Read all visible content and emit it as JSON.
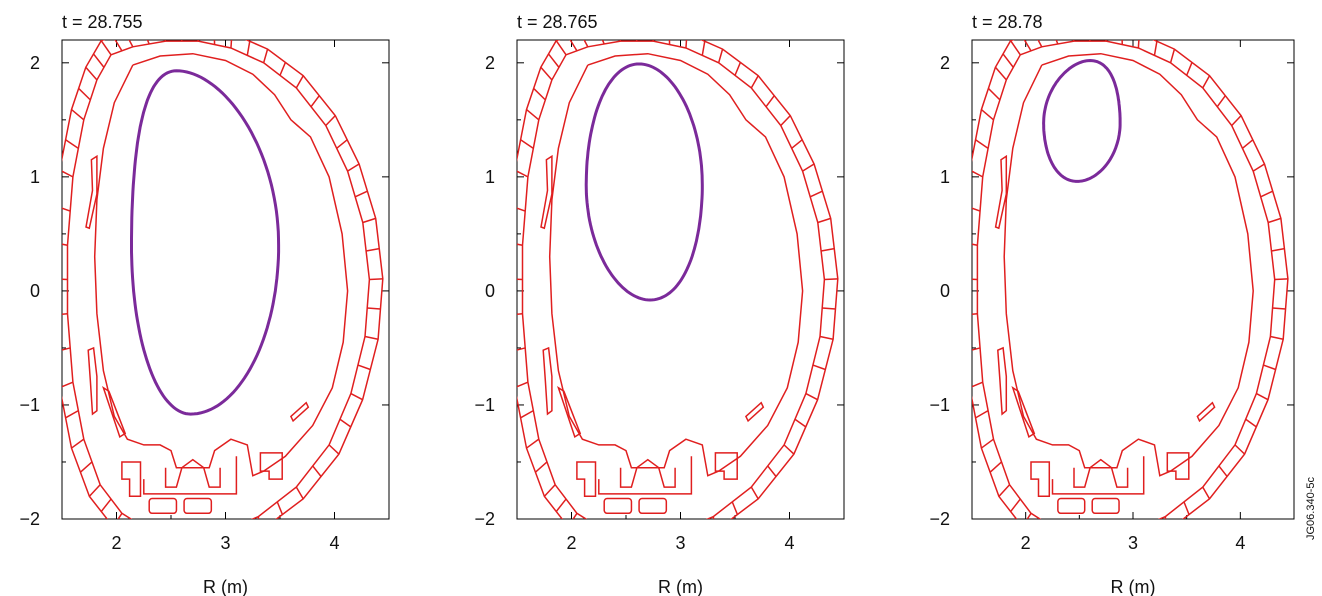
{
  "chart_data": [
    {
      "type": "line",
      "title": "t = 28.755",
      "xlabel": "R (m)",
      "ylabel": "",
      "xlim": [
        1.5,
        4.5
      ],
      "ylim": [
        -2,
        2.2
      ],
      "xticks": [
        "2",
        "3",
        "4"
      ],
      "yticks": [
        "−2",
        "−1",
        "0",
        "1",
        "2"
      ],
      "series": [
        {
          "role": "plasma-boundary",
          "color": "#7b2a9a",
          "shape": {
            "cx": 2.7,
            "cy": 0.4,
            "ri": 0.75,
            "ro": 1.05,
            "top": 1.93,
            "bottom": -1.08,
            "topR": 2.55,
            "botR": 2.68
          }
        }
      ]
    },
    {
      "type": "line",
      "title": "t = 28.765",
      "xlabel": "R (m)",
      "ylabel": "",
      "xlim": [
        1.5,
        4.5
      ],
      "ylim": [
        -2,
        2.2
      ],
      "xticks": [
        "2",
        "3",
        "4"
      ],
      "yticks": [
        "−2",
        "−1",
        "0",
        "1",
        "2"
      ],
      "series": [
        {
          "role": "plasma-boundary",
          "color": "#7b2a9a",
          "shape": {
            "cx": 2.66,
            "cy": 0.93,
            "ri": 0.7,
            "ro": 0.72,
            "top": 1.99,
            "bottom": -0.08,
            "topR": 2.62,
            "botR": 2.72
          }
        }
      ]
    },
    {
      "type": "line",
      "title": "t = 28.78",
      "xlabel": "R (m)",
      "ylabel": "",
      "xlim": [
        1.5,
        4.5
      ],
      "ylim": [
        -2,
        2.2
      ],
      "xticks": [
        "2",
        "3",
        "4"
      ],
      "yticks": [
        "−2",
        "−1",
        "0",
        "1",
        "2"
      ],
      "series": [
        {
          "role": "plasma-boundary",
          "color": "#7b2a9a",
          "shape": {
            "cx": 2.52,
            "cy": 1.47,
            "ri": 0.47,
            "ro": 0.48,
            "top": 2.02,
            "bottom": 0.96,
            "topR": 2.6,
            "botR": 2.48
          }
        }
      ]
    }
  ],
  "colors": {
    "vessel": "#e01f1f",
    "plasma": "#7b2a9a"
  },
  "figure_code": "JG06.340-5c"
}
